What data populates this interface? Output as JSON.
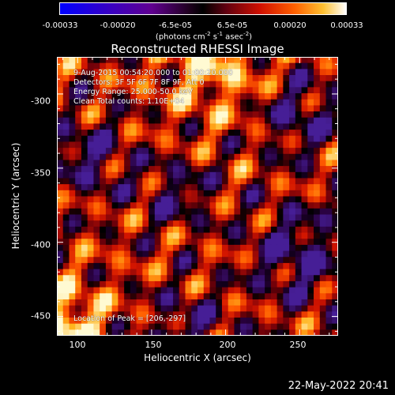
{
  "chart_data": {
    "type": "heatmap",
    "title": "Reconstructed RHESSI Image",
    "xlabel": "Heliocentric X (arcsec)",
    "ylabel": "Heliocentric Y (arcsec)",
    "xlim": [
      86,
      276
    ],
    "ylim": [
      -463,
      -275
    ],
    "x_ticks": [
      100,
      150,
      200,
      250
    ],
    "y_ticks": [
      -300,
      -350,
      -400,
      -450
    ],
    "colorbar": {
      "ticks": [
        "-0.00033",
        "-0.00020",
        "-6.5e-05",
        "6.5e-05",
        "0.00020",
        "0.00033"
      ],
      "tick_values": [
        -0.00033,
        -0.0002,
        -6.5e-05,
        6.5e-05,
        0.0002,
        0.00033
      ],
      "units_text": "(photons cm",
      "units_parts": [
        "(photons cm",
        "-2",
        " s",
        "-1",
        " asec",
        "-2",
        ")"
      ],
      "range": [
        -0.00033,
        0.00033
      ],
      "colors": [
        "#0000ff",
        "#2a00c8",
        "#6400a0",
        "#5a1080",
        "#2a0030",
        "#000000",
        "#500010",
        "#c00000",
        "#ff3000",
        "#ff8000",
        "#ffd040",
        "#ffffff"
      ]
    },
    "info_lines": [
      "9-Aug-2015 00:54:20.000 to 01:00:20.000",
      "Detectors: 3F 5F 6F 7F 8F 9F, Att 0",
      "Energy Range: 25.000-50.0 keV",
      "Clean     Total counts: 1.10E+04"
    ],
    "peak_label": "Location of Peak = [206,-297]",
    "peak": [
      206,
      -297
    ]
  },
  "timestamp": "22-May-2022 20:41"
}
